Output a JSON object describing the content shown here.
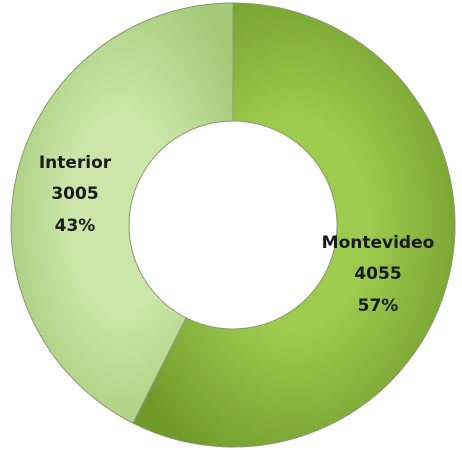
{
  "chart_data": {
    "type": "donut",
    "categories": [
      "Montevideo",
      "Interior"
    ],
    "values": [
      4055,
      3005
    ],
    "percent_values": [
      57,
      43
    ],
    "percent_labels": [
      "57%",
      "43%"
    ],
    "colors": [
      "#86b43c",
      "#b7d98d"
    ]
  }
}
